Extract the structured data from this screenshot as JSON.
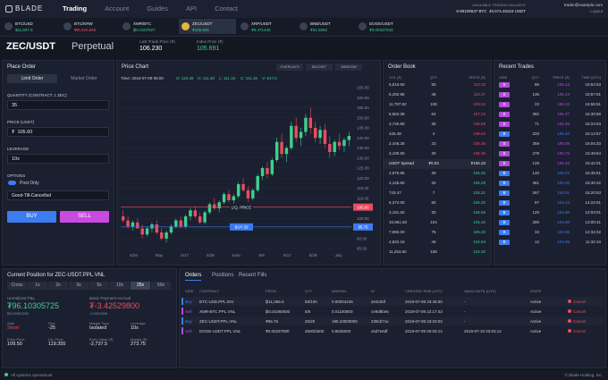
{
  "nav": {
    "logo": "BLADE",
    "links": [
      "Trading",
      "Account",
      "Guides",
      "API",
      "Contact"
    ],
    "active_link": "Trading",
    "balance_label": "AVAILABLE TRADING BALANCE",
    "balance_btc": "9.99109537 BTC",
    "balance_usdt": "40,674.45319 USDT",
    "email": "trader@example.com",
    "logout": "Logout"
  },
  "ticker": {
    "active_pair": "ZEC/USDT",
    "items": [
      {
        "pair": "BTC/USD",
        "price": "$11,847.5",
        "color": "#3ecf8e"
      },
      {
        "pair": "BTC/KRW",
        "price": "₩6,920,855",
        "color": "#ea4c5f"
      },
      {
        "pair": "XMR/BTC",
        "price": "₿0.0107627",
        "color": "#3ecf8e"
      },
      {
        "pair": "ZEC/USDT",
        "price": "₮105.691",
        "color": "#3ecf8e"
      },
      {
        "pair": "XRP/USDT",
        "price": "₮0.471440",
        "color": "#3ecf8e"
      },
      {
        "pair": "BNB/USDT",
        "price": "₮31.0262",
        "color": "#3ecf8e"
      },
      {
        "pair": "DOGE/USDT",
        "price": "₮0.00337043",
        "color": "#3ecf8e"
      }
    ]
  },
  "header": {
    "pair": "ZEC/USDT",
    "contract": "Perpetual",
    "last_label": "Last Trade Price (₮)",
    "last": "106.230",
    "index_label": "Index Price (₮)",
    "index": "105.691"
  },
  "place_order": {
    "title": "Place Order",
    "tabs": [
      "Limit Order",
      "Market Order"
    ],
    "quantity_label": "QUANTITY (CONTRACT: 1 ZEC)",
    "quantity": "35",
    "price_label": "PRICE (USDT)",
    "price_currency": "₮",
    "price": "105.60",
    "leverage_label": "LEVERAGE",
    "leverage": "10x",
    "options_label": "OPTIONS",
    "post_only": "Post Only",
    "time_in_force": "Good-Till-Cancelled",
    "buy": "BUY",
    "sell": "SELL"
  },
  "price_chart": {
    "type": "candlestick",
    "title": "Price Chart",
    "controls": [
      "OVERLAYS",
      "BUCKET",
      "WINDOW"
    ],
    "time": "Time: 2019-07-09 08:00",
    "stats": [
      "O: 110.48",
      "H: 111.48",
      "L: 111.16",
      "C: 111.16",
      "V: 917.0"
    ],
    "up_color": "#3ecf8e",
    "down_color": "#ea4c5f",
    "ylim": [
      85,
      165
    ],
    "yticks": [
      {
        "value": 165,
        "label": "165.00"
      },
      {
        "value": 160,
        "label": "160.00"
      },
      {
        "value": 155,
        "label": "155.00"
      },
      {
        "value": 150,
        "label": "150.00"
      },
      {
        "value": 145,
        "label": "145.00"
      },
      {
        "value": 140,
        "label": "140.00"
      },
      {
        "value": 135,
        "label": "135.00"
      },
      {
        "value": 130,
        "label": "130.00"
      },
      {
        "value": 125,
        "label": "125.00"
      },
      {
        "value": 120,
        "label": "120.00"
      },
      {
        "value": 115,
        "label": "115.00"
      },
      {
        "value": 110,
        "label": "110.00"
      },
      {
        "value": 105,
        "label": "105.00"
      },
      {
        "value": 100,
        "label": "100.00"
      },
      {
        "value": 95,
        "label": "95.00"
      },
      {
        "value": 90,
        "label": "90.00"
      },
      {
        "value": 85,
        "label": "85.00"
      }
    ],
    "x_labels": [
      "4/29",
      "May",
      "5/17",
      "5/28",
      "June",
      "6/9",
      "6/17",
      "6/28",
      "July"
    ],
    "liq_price": {
      "label": "LIQ. PRICE",
      "value": 105.6,
      "value_label": "105.60",
      "color": "#ea4c5f"
    },
    "open_order": {
      "label": "BUY 20",
      "value": 95.75,
      "value_label": "95.75",
      "color": "#3d7bf0"
    },
    "candles": [
      [
        101,
        104,
        98,
        99
      ],
      [
        99,
        101,
        95,
        96
      ],
      [
        96,
        99,
        94,
        98
      ],
      [
        98,
        100,
        95,
        95
      ],
      [
        95,
        97,
        90,
        92
      ],
      [
        92,
        96,
        91,
        95
      ],
      [
        95,
        98,
        93,
        97
      ],
      [
        97,
        99,
        92,
        93
      ],
      [
        93,
        95,
        89,
        90
      ],
      [
        90,
        94,
        88,
        93
      ],
      [
        93,
        97,
        92,
        96
      ],
      [
        96,
        100,
        95,
        99
      ],
      [
        99,
        101,
        95,
        96
      ],
      [
        96,
        102,
        95,
        101
      ],
      [
        101,
        105,
        99,
        104
      ],
      [
        104,
        106,
        100,
        101
      ],
      [
        101,
        103,
        97,
        98
      ],
      [
        98,
        104,
        97,
        103
      ],
      [
        103,
        108,
        102,
        107
      ],
      [
        107,
        110,
        104,
        105
      ],
      [
        105,
        109,
        103,
        108
      ],
      [
        108,
        113,
        107,
        112
      ],
      [
        112,
        114,
        108,
        109
      ],
      [
        109,
        112,
        106,
        111
      ],
      [
        111,
        118,
        110,
        117
      ],
      [
        117,
        120,
        113,
        114
      ],
      [
        114,
        116,
        108,
        110
      ],
      [
        110,
        115,
        109,
        114
      ],
      [
        114,
        122,
        113,
        121
      ],
      [
        121,
        126,
        119,
        125
      ],
      [
        125,
        128,
        120,
        122
      ],
      [
        122,
        130,
        121,
        129
      ],
      [
        129,
        140,
        128,
        138
      ],
      [
        138,
        142,
        130,
        132
      ],
      [
        132,
        136,
        128,
        135
      ],
      [
        135,
        148,
        134,
        146
      ],
      [
        146,
        150,
        138,
        140
      ],
      [
        140,
        145,
        136,
        143
      ],
      [
        143,
        152,
        141,
        150
      ],
      [
        150,
        155,
        142,
        145
      ],
      [
        145,
        148,
        138,
        140
      ],
      [
        140,
        146,
        137,
        144
      ],
      [
        144,
        147,
        135,
        137
      ],
      [
        137,
        141,
        130,
        133
      ],
      [
        133,
        139,
        131,
        138
      ],
      [
        138,
        142,
        134,
        136
      ],
      [
        136,
        140,
        133,
        139
      ],
      [
        139,
        143,
        136,
        141
      ]
    ]
  },
  "order_book": {
    "title": "Order Book",
    "columns": [
      "VOL (₮)",
      "QTY",
      "PRICE (₮)"
    ],
    "ask_color": "#ea4c5f",
    "bid_color": "#3ecf8e",
    "asks": [
      [
        "5,516.50",
        "50",
        "110.33"
      ],
      [
        "5,292.96",
        "48",
        "110.27"
      ],
      [
        "11,797.92",
        "108",
        "109.24"
      ],
      [
        "6,862.08",
        "64",
        "107.22"
      ],
      [
        "3,740.80",
        "35",
        "106.88"
      ],
      [
        "426.48",
        "4",
        "106.62"
      ],
      [
        "2,446.28",
        "23",
        "106.36"
      ],
      [
        "3,190.50",
        "30",
        "106.35"
      ]
    ],
    "spread": [
      "USDT Spread",
      "₮0.03",
      "₮106.33"
    ],
    "bids": [
      [
        "2,976.96",
        "28",
        "106.32"
      ],
      [
        "2,125.60",
        "20",
        "106.28"
      ],
      [
        "743.47",
        "7",
        "106.21"
      ],
      [
        "6,372.00",
        "60",
        "106.20"
      ],
      [
        "3,181.50",
        "30",
        "106.05"
      ],
      [
        "10,961.60",
        "104",
        "105.40"
      ],
      [
        "7,890.00",
        "75",
        "105.20"
      ],
      [
        "4,822.18",
        "46",
        "104.83"
      ],
      [
        "11,253.60",
        "108",
        "104.20"
      ]
    ]
  },
  "recent_trades": {
    "title": "Recent Trades",
    "columns": [
      "SIDE",
      "QTY",
      "PRICE (₮)",
      "TIME (UTC)"
    ],
    "rows": [
      {
        "side": "S",
        "color": "#b24cd8",
        "qty": "86",
        "price": "106.23",
        "time": "16:54:53"
      },
      {
        "side": "S",
        "color": "#b24cd8",
        "qty": "135",
        "price": "106.23",
        "time": "16:57:01"
      },
      {
        "side": "S",
        "color": "#b24cd8",
        "qty": "23",
        "price": "106.33",
        "time": "16:56:51"
      },
      {
        "side": "S",
        "color": "#b24cd8",
        "qty": "392",
        "price": "106.37",
        "time": "16:30:58"
      },
      {
        "side": "S",
        "color": "#b24cd8",
        "qty": "71",
        "price": "106.40",
        "time": "16:24:53"
      },
      {
        "side": "B",
        "color": "#3d7bf0",
        "qty": "233",
        "price": "105.40",
        "time": "16:14:57"
      },
      {
        "side": "S",
        "color": "#b24cd8",
        "qty": "359",
        "price": "106.09",
        "time": "16:04:33"
      },
      {
        "side": "S",
        "color": "#b24cd8",
        "qty": "279",
        "price": "105.75",
        "time": "15:49:54"
      },
      {
        "side": "S",
        "color": "#b24cd8",
        "qty": "129",
        "price": "106.33",
        "time": "15:42:01"
      },
      {
        "side": "B",
        "color": "#3d7bf0",
        "qty": "140",
        "price": "105.22",
        "time": "15:35:51"
      },
      {
        "side": "B",
        "color": "#3d7bf0",
        "qty": "381",
        "price": "105.20",
        "time": "15:30:32"
      },
      {
        "side": "B",
        "color": "#3d7bf0",
        "qty": "267",
        "price": "104.51",
        "time": "15:20:53"
      },
      {
        "side": "B",
        "color": "#3d7bf0",
        "qty": "87",
        "price": "104.43",
        "time": "14:24:01"
      },
      {
        "side": "B",
        "color": "#3d7bf0",
        "qty": "129",
        "price": "104.90",
        "time": "13:03:01"
      },
      {
        "side": "B",
        "color": "#3d7bf0",
        "qty": "300",
        "price": "104.90",
        "time": "13:00:41"
      },
      {
        "side": "B",
        "color": "#3d7bf0",
        "qty": "34",
        "price": "104.96",
        "time": "12:34:32"
      },
      {
        "side": "B",
        "color": "#3d7bf0",
        "qty": "12",
        "price": "104.85",
        "time": "11:32:10"
      }
    ]
  },
  "position": {
    "title": "Current Position for ZEC-USDT.PPL.VNL",
    "leverage_options": [
      "Cross",
      "1x",
      "2x",
      "3x",
      "5x",
      "10x",
      "25x",
      "50x"
    ],
    "active_leverage": "25x",
    "pnl": {
      "label": "Unrealized P&L",
      "value": "₮96.10305725",
      "sub": "₿0.00902250",
      "color": "#3ecf8e"
    },
    "accrual": {
      "label": "Basic Payment Accrual",
      "value": "₮-3.42529800",
      "sub": "-0.0324006",
      "color": "#ea4c5f"
    },
    "stats": [
      {
        "label": "Side",
        "value": "Short"
      },
      {
        "label": "Size",
        "value": "-25"
      },
      {
        "label": "Margin Type",
        "value": "Isolated"
      },
      {
        "label": "Leverage",
        "value": "10x"
      },
      {
        "label": "Entry Price",
        "value": "109.50"
      },
      {
        "label": "Liq. Price",
        "value": "119.355"
      },
      {
        "label": "Entry Value (₮)",
        "value": "-2,737.5"
      },
      {
        "label": "Margin (₮)",
        "value": "273.75"
      }
    ]
  },
  "orders": {
    "tabs": [
      "Orders",
      "Positions",
      "Recent Fills"
    ],
    "active_tab": "Orders",
    "columns": [
      "SIDE",
      "CONTRACT",
      "PRICE",
      "QTY",
      "MARGIN",
      "ID",
      "CREATED TIME (UTC)",
      "VALID UNTIL (UTC)",
      "STATE"
    ],
    "rows": [
      {
        "side": "Buy",
        "color": "#3d7bf0",
        "contract": "BTC-USD.PPL.INV",
        "price": "₿11,065.5",
        "qty": "50/100",
        "margin": "0.00004246",
        "id": "2e3c00f",
        "created": "2019-07-09 23:46:50",
        "valid": "-",
        "state": "Active",
        "cancel": "Cancel"
      },
      {
        "side": "Sell",
        "color": "#b24cd8",
        "contract": "XMR-BTC.PPL.VNL",
        "price": "₿0.01060000",
        "qty": "5/5",
        "margin": "0.01100900",
        "id": "ce9d9be6",
        "created": "2019-07-09 22:17:43",
        "valid": "-",
        "state": "Active",
        "cancel": "Cancel"
      },
      {
        "side": "Buy",
        "color": "#3d7bf0",
        "contract": "ZEC-USDT.PPL.VNL",
        "price": "₮95.75",
        "qty": "20/20",
        "margin": "195.23000000",
        "id": "239cb7ce",
        "created": "2019-07-09 23:20:03",
        "valid": "-",
        "state": "Active",
        "cancel": "Cancel"
      },
      {
        "side": "Sell",
        "color": "#b24cd8",
        "contract": "DOGE-USDT.PPL.VNL",
        "price": "₮0.00337000",
        "qty": "2500/2500",
        "margin": "0.8635000",
        "id": "c5d7e6df",
        "created": "2019-07-09 00:03:14",
        "valid": "2019-07-10 03:03:14",
        "state": "Active",
        "cancel": "Cancel"
      }
    ]
  },
  "footer": {
    "status": "All systems operational",
    "copyright": "© Blade Holding, Inc."
  }
}
